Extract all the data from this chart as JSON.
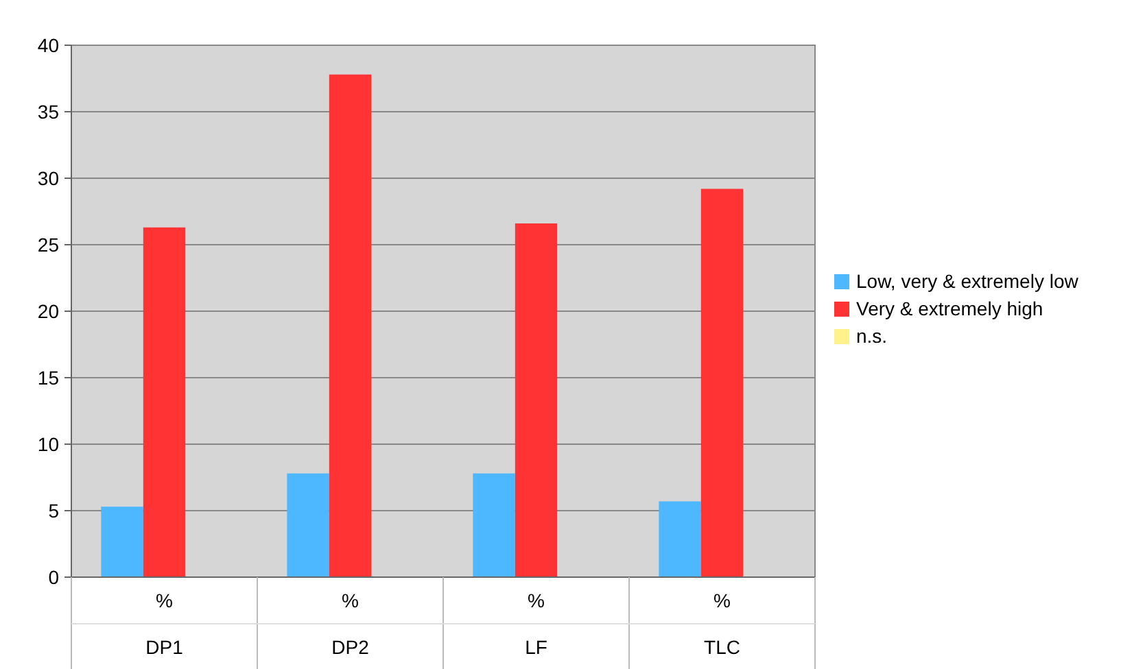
{
  "chart_data": {
    "type": "bar",
    "categories": [
      "%\nDP1",
      "%\nDP2",
      "%\nLF",
      "%\nTLC"
    ],
    "series": [
      {
        "name": "Low, very & extremely low",
        "color": "#4db8ff",
        "values": [
          5.3,
          7.8,
          7.8,
          5.7
        ]
      },
      {
        "name": "Very & extremely high",
        "color": "#ff3333",
        "values": [
          26.3,
          37.8,
          26.6,
          29.2
        ]
      },
      {
        "name": "n.s.",
        "color": "#fff28c",
        "values": [
          0,
          0,
          0,
          0
        ]
      }
    ],
    "ylim": [
      0,
      40
    ],
    "yticks": [
      0,
      5,
      10,
      15,
      20,
      25,
      30,
      35,
      40
    ],
    "grid": "y",
    "legend": "right"
  }
}
